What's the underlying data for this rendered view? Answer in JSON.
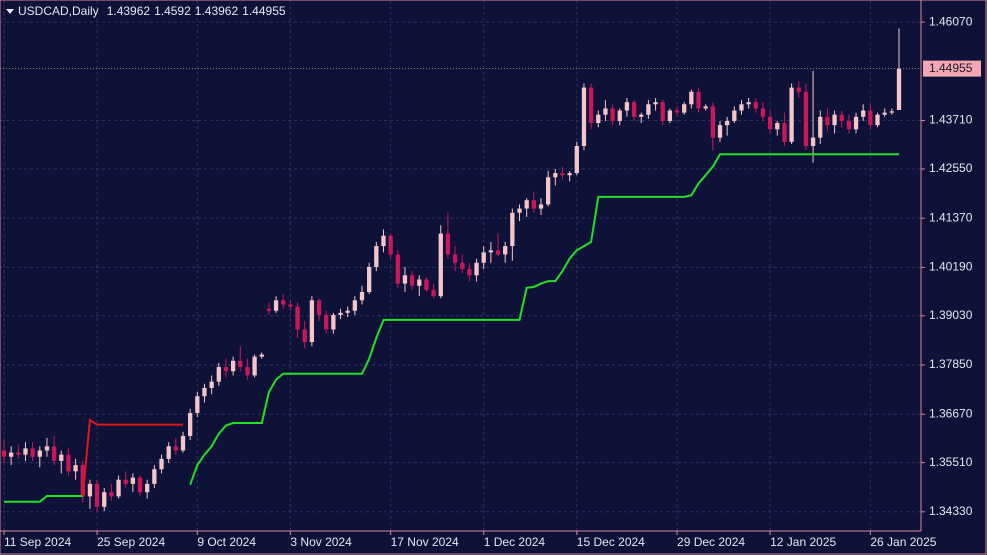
{
  "chart_data": {
    "type": "candlestick",
    "title": "USDCAD,Daily",
    "up_color": "#f5c6c8",
    "down_color": "#c8185a",
    "grid": true,
    "ylim": [
      1.3387,
      1.466
    ],
    "yticks": [
      {
        "value": 1.4607,
        "label": "1.46070"
      },
      {
        "value": 1.4371,
        "label": "1.43710"
      },
      {
        "value": 1.4255,
        "label": "1.42550"
      },
      {
        "value": 1.4137,
        "label": "1.41370"
      },
      {
        "value": 1.4019,
        "label": "1.40190"
      },
      {
        "value": 1.3903,
        "label": "1.39030"
      },
      {
        "value": 1.3785,
        "label": "1.37850"
      },
      {
        "value": 1.3667,
        "label": "1.36670"
      },
      {
        "value": 1.3551,
        "label": "1.35510"
      },
      {
        "value": 1.3433,
        "label": "1.34330"
      }
    ],
    "categories": [
      "11 Sep 2024",
      null,
      null,
      null,
      null,
      null,
      null,
      null,
      null,
      null,
      null,
      null,
      null,
      "25 Sep 2024",
      null,
      null,
      null,
      null,
      null,
      null,
      null,
      null,
      null,
      null,
      null,
      null,
      null,
      "9 Oct 2024",
      null,
      null,
      null,
      null,
      null,
      null,
      null,
      null,
      null,
      null,
      null,
      null,
      "3 Nov 2024",
      null,
      null,
      null,
      null,
      null,
      null,
      null,
      null,
      null,
      null,
      null,
      null,
      null,
      "17 Nov 2024",
      null,
      null,
      null,
      null,
      null,
      null,
      null,
      null,
      null,
      null,
      null,
      null,
      "1 Dec 2024",
      null,
      null,
      null,
      null,
      null,
      null,
      null,
      null,
      null,
      null,
      null,
      null,
      "15 Dec 2024",
      null,
      null,
      null,
      null,
      null,
      null,
      null,
      null,
      null,
      null,
      null,
      null,
      null,
      "29 Dec 2024",
      null,
      null,
      null,
      null,
      null,
      null,
      null,
      null,
      null,
      null,
      null,
      null,
      "12 Jan 2025",
      null,
      null,
      null,
      null,
      null,
      null,
      null,
      null,
      null,
      null,
      null,
      null,
      null,
      "26 Jan 2025",
      null,
      null,
      null,
      null
    ],
    "ohlc": [
      [
        1.358,
        1.3605,
        1.355,
        1.3565
      ],
      [
        1.3565,
        1.359,
        1.3545,
        1.3575
      ],
      [
        1.3575,
        1.3595,
        1.356,
        1.357
      ],
      [
        1.357,
        1.36,
        1.3555,
        1.3585
      ],
      [
        1.3585,
        1.36,
        1.3555,
        1.3565
      ],
      [
        1.3565,
        1.359,
        1.354,
        1.358
      ],
      [
        1.358,
        1.361,
        1.3565,
        1.359
      ],
      [
        1.359,
        1.3615,
        1.3545,
        1.3555
      ],
      [
        1.3555,
        1.358,
        1.3525,
        1.357
      ],
      [
        1.357,
        1.3585,
        1.352,
        1.353
      ],
      [
        1.353,
        1.356,
        1.351,
        1.3545
      ],
      [
        1.3545,
        1.3555,
        1.3455,
        1.347
      ],
      [
        1.347,
        1.351,
        1.344,
        1.35
      ],
      [
        1.35,
        1.351,
        1.3433,
        1.3445
      ],
      [
        1.3445,
        1.349,
        1.3435,
        1.348
      ],
      [
        1.348,
        1.35,
        1.346,
        1.347
      ],
      [
        1.347,
        1.352,
        1.3465,
        1.351
      ],
      [
        1.351,
        1.353,
        1.349,
        1.35
      ],
      [
        1.35,
        1.3525,
        1.348,
        1.3515
      ],
      [
        1.3515,
        1.352,
        1.347,
        1.348
      ],
      [
        1.348,
        1.351,
        1.3465,
        1.35
      ],
      [
        1.35,
        1.3545,
        1.349,
        1.3535
      ],
      [
        1.3535,
        1.357,
        1.3525,
        1.356
      ],
      [
        1.356,
        1.36,
        1.355,
        1.359
      ],
      [
        1.359,
        1.361,
        1.357,
        1.358
      ],
      [
        1.358,
        1.3625,
        1.3575,
        1.3615
      ],
      [
        1.3615,
        1.368,
        1.3605,
        1.367
      ],
      [
        1.367,
        1.372,
        1.366,
        1.371
      ],
      [
        1.371,
        1.374,
        1.3695,
        1.373
      ],
      [
        1.373,
        1.376,
        1.3715,
        1.3745
      ],
      [
        1.3745,
        1.379,
        1.3735,
        1.378
      ],
      [
        1.378,
        1.38,
        1.3755,
        1.377
      ],
      [
        1.377,
        1.3805,
        1.376,
        1.3795
      ],
      [
        1.3795,
        1.383,
        1.377,
        1.378
      ],
      [
        1.378,
        1.38,
        1.375,
        1.376
      ],
      [
        1.376,
        1.381,
        1.3755,
        1.3805
      ],
      [
        1.3805,
        1.3815,
        1.38,
        1.381
      ],
      [
        1.392,
        1.3935,
        1.3905,
        1.3915
      ],
      [
        1.3915,
        1.395,
        1.391,
        1.394
      ],
      [
        1.394,
        1.3955,
        1.392,
        1.393
      ],
      [
        1.393,
        1.394,
        1.3915,
        1.3925
      ],
      [
        1.3925,
        1.3935,
        1.385,
        1.387
      ],
      [
        1.387,
        1.389,
        1.3825,
        1.384
      ],
      [
        1.384,
        1.395,
        1.383,
        1.394
      ],
      [
        1.394,
        1.3945,
        1.389,
        1.3905
      ],
      [
        1.3905,
        1.3915,
        1.386,
        1.387
      ],
      [
        1.387,
        1.391,
        1.386,
        1.3905
      ],
      [
        1.3905,
        1.392,
        1.3895,
        1.391
      ],
      [
        1.391,
        1.3925,
        1.39,
        1.3915
      ],
      [
        1.3915,
        1.395,
        1.3905,
        1.394
      ],
      [
        1.394,
        1.3975,
        1.393,
        1.396
      ],
      [
        1.396,
        1.403,
        1.3955,
        1.402
      ],
      [
        1.402,
        1.408,
        1.401,
        1.407
      ],
      [
        1.407,
        1.411,
        1.4055,
        1.4095
      ],
      [
        1.4095,
        1.41,
        1.404,
        1.405
      ],
      [
        1.405,
        1.406,
        1.397,
        1.398
      ],
      [
        1.398,
        1.402,
        1.396,
        1.4
      ],
      [
        1.4,
        1.401,
        1.3965,
        1.3975
      ],
      [
        1.3975,
        1.4,
        1.395,
        1.399
      ],
      [
        1.399,
        1.3995,
        1.396,
        1.3965
      ],
      [
        1.3965,
        1.398,
        1.3945,
        1.395
      ],
      [
        1.395,
        1.412,
        1.3945,
        1.41
      ],
      [
        1.41,
        1.415,
        1.404,
        1.405
      ],
      [
        1.405,
        1.407,
        1.401,
        1.403
      ],
      [
        1.403,
        1.405,
        1.4005,
        1.4015
      ],
      [
        1.4015,
        1.403,
        1.3985,
        1.4
      ],
      [
        1.4,
        1.404,
        1.3985,
        1.403
      ],
      [
        1.403,
        1.407,
        1.4015,
        1.4055
      ],
      [
        1.4055,
        1.408,
        1.403,
        1.406
      ],
      [
        1.406,
        1.41,
        1.4045,
        1.405
      ],
      [
        1.405,
        1.408,
        1.403,
        1.407
      ],
      [
        1.407,
        1.416,
        1.4035,
        1.415
      ],
      [
        1.415,
        1.417,
        1.413,
        1.416
      ],
      [
        1.416,
        1.4185,
        1.414,
        1.418
      ],
      [
        1.418,
        1.42,
        1.415,
        1.416
      ],
      [
        1.416,
        1.4185,
        1.4145,
        1.417
      ],
      [
        1.417,
        1.425,
        1.4165,
        1.4235
      ],
      [
        1.4235,
        1.4255,
        1.4215,
        1.4245
      ],
      [
        1.4245,
        1.426,
        1.423,
        1.424
      ],
      [
        1.424,
        1.425,
        1.4225,
        1.4245
      ],
      [
        1.4245,
        1.432,
        1.424,
        1.431
      ],
      [
        1.431,
        1.446,
        1.43,
        1.445
      ],
      [
        1.445,
        1.446,
        1.435,
        1.4365
      ],
      [
        1.4365,
        1.4395,
        1.4355,
        1.4385
      ],
      [
        1.4385,
        1.442,
        1.437,
        1.44
      ],
      [
        1.44,
        1.441,
        1.436,
        1.437
      ],
      [
        1.437,
        1.44,
        1.436,
        1.4395
      ],
      [
        1.4395,
        1.4425,
        1.438,
        1.4415
      ],
      [
        1.4415,
        1.442,
        1.437,
        1.438
      ],
      [
        1.438,
        1.439,
        1.4365,
        1.4385
      ],
      [
        1.4385,
        1.442,
        1.4375,
        1.441
      ],
      [
        1.441,
        1.4425,
        1.4395,
        1.4415
      ],
      [
        1.4415,
        1.442,
        1.436,
        1.437
      ],
      [
        1.437,
        1.44,
        1.4365,
        1.4395
      ],
      [
        1.4395,
        1.4405,
        1.438,
        1.439
      ],
      [
        1.439,
        1.4415,
        1.4385,
        1.441
      ],
      [
        1.441,
        1.4445,
        1.44,
        1.444
      ],
      [
        1.444,
        1.445,
        1.439,
        1.44
      ],
      [
        1.44,
        1.441,
        1.4395,
        1.4405
      ],
      [
        1.4405,
        1.4415,
        1.43,
        1.433
      ],
      [
        1.433,
        1.437,
        1.432,
        1.436
      ],
      [
        1.436,
        1.438,
        1.4335,
        1.437
      ],
      [
        1.437,
        1.4405,
        1.4365,
        1.4395
      ],
      [
        1.4395,
        1.442,
        1.4385,
        1.441
      ],
      [
        1.441,
        1.4425,
        1.44,
        1.4415
      ],
      [
        1.4415,
        1.4425,
        1.439,
        1.44
      ],
      [
        1.44,
        1.4415,
        1.437,
        1.438
      ],
      [
        1.438,
        1.4395,
        1.434,
        1.435
      ],
      [
        1.435,
        1.437,
        1.4335,
        1.4365
      ],
      [
        1.4365,
        1.439,
        1.431,
        1.432
      ],
      [
        1.432,
        1.446,
        1.4315,
        1.445
      ],
      [
        1.445,
        1.4465,
        1.4425,
        1.444
      ],
      [
        1.444,
        1.446,
        1.43,
        1.431
      ],
      [
        1.431,
        1.449,
        1.427,
        1.433
      ],
      [
        1.433,
        1.4395,
        1.4315,
        1.438
      ],
      [
        1.438,
        1.44,
        1.4345,
        1.436
      ],
      [
        1.436,
        1.4395,
        1.434,
        1.4385
      ],
      [
        1.4385,
        1.4395,
        1.4355,
        1.437
      ],
      [
        1.437,
        1.4385,
        1.434,
        1.435
      ],
      [
        1.435,
        1.439,
        1.434,
        1.438
      ],
      [
        1.438,
        1.441,
        1.437,
        1.4395
      ],
      [
        1.4395,
        1.441,
        1.435,
        1.436
      ],
      [
        1.436,
        1.439,
        1.4355,
        1.4385
      ],
      [
        1.4385,
        1.44,
        1.438,
        1.439
      ],
      [
        1.439,
        1.44,
        1.4385,
        1.4393
      ],
      [
        1.43962,
        1.4592,
        1.43962,
        1.44955
      ]
    ],
    "series": [
      {
        "color": "#22e022",
        "values": [
          1.3457,
          1.3457,
          1.3457,
          1.3457,
          1.3457,
          1.3457,
          1.3471,
          1.3471,
          1.3471,
          1.3471,
          1.3471,
          1.3471,
          null,
          null,
          null,
          null,
          null,
          null,
          null,
          null,
          null,
          null,
          null,
          null,
          null,
          null,
          1.3498,
          1.3545,
          1.357,
          1.359,
          1.362,
          1.364,
          1.3646,
          1.3646,
          1.3646,
          1.3646,
          1.3646,
          1.372,
          1.375,
          1.3764,
          1.3764,
          1.3764,
          1.3764,
          1.3764,
          1.3764,
          1.3764,
          1.3764,
          1.3764,
          1.3764,
          1.3764,
          1.3764,
          1.38,
          1.385,
          1.3893,
          1.3893,
          1.3893,
          1.3893,
          1.3893,
          1.3893,
          1.3893,
          1.3893,
          1.3893,
          1.3893,
          1.3893,
          1.3893,
          1.3893,
          1.3893,
          1.3893,
          1.3893,
          1.3893,
          1.3893,
          1.3893,
          1.3893,
          1.397,
          1.3972,
          1.398,
          1.3986,
          1.3986,
          1.401,
          1.404,
          1.406,
          1.407,
          1.408,
          1.4188,
          1.4188,
          1.4188,
          1.4188,
          1.4188,
          1.4188,
          1.4188,
          1.4188,
          1.4188,
          1.4188,
          1.4188,
          1.4188,
          1.4188,
          1.4192,
          1.422,
          1.424,
          1.426,
          1.429,
          1.429,
          1.429,
          1.429,
          1.429,
          1.429,
          1.429,
          1.429,
          1.429,
          1.429,
          1.429,
          1.429,
          1.429,
          1.429,
          1.429,
          1.429,
          1.429,
          1.429,
          1.429,
          1.429,
          1.429,
          1.429,
          1.429,
          1.429,
          1.429,
          1.429
        ]
      },
      {
        "color": "#e01818",
        "values": [
          null,
          null,
          null,
          null,
          null,
          null,
          null,
          null,
          null,
          null,
          null,
          1.3471,
          1.3653,
          1.3642,
          1.3642,
          1.3642,
          1.3642,
          1.3642,
          1.3642,
          1.3642,
          1.3642,
          1.3642,
          1.3642,
          1.3642,
          1.3642,
          1.3642,
          null,
          null,
          null,
          null,
          null,
          null,
          null,
          null,
          null,
          null,
          null,
          null,
          null,
          null,
          null,
          null,
          null,
          null,
          null,
          null,
          null,
          null,
          null,
          null,
          null,
          null,
          null,
          null,
          null,
          null,
          null,
          null,
          null,
          null,
          null,
          null,
          null,
          null,
          null,
          null,
          null,
          null,
          null,
          null,
          null,
          null,
          null,
          null,
          null,
          null,
          null,
          null,
          null,
          null,
          null,
          null,
          null,
          null,
          null,
          null,
          null,
          null,
          null,
          null,
          null,
          null,
          null,
          null,
          null,
          null,
          null,
          null,
          null,
          null,
          null,
          null,
          null,
          null,
          null,
          null,
          null,
          null,
          null,
          null,
          null,
          null,
          null,
          null,
          null,
          null,
          null,
          null,
          null,
          null,
          null,
          null,
          null,
          null,
          null,
          null
        ]
      }
    ]
  }
}
